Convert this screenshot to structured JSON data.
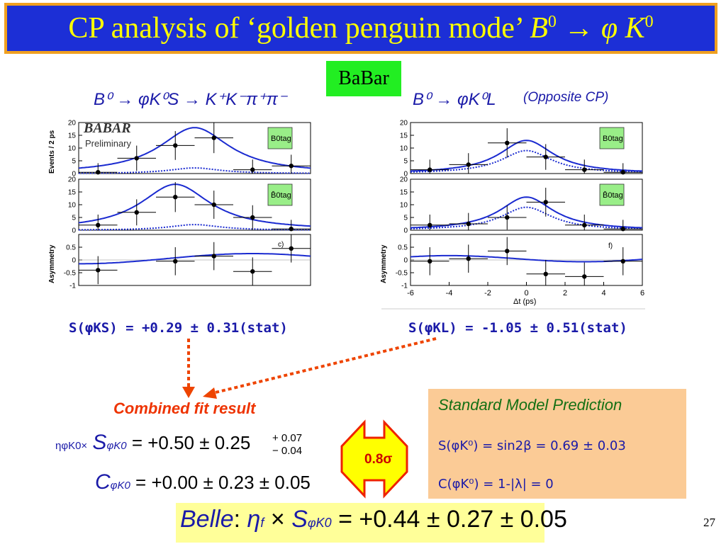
{
  "title": {
    "text": "CP analysis of ‘golden penguin mode’",
    "decay_b": "B",
    "decay_b_sup": "0",
    "decay_arrow": "→",
    "decay_phi": "φ",
    "decay_k": "K",
    "decay_k_sup": "0"
  },
  "babar_label": "BaBar",
  "left_decay": "B⁰ → φK⁰S → K⁺K⁻π⁺π⁻",
  "right_decay": "B⁰ → φK⁰L",
  "opposite_cp": "(Opposite CP)",
  "left_result": "S(φKS) = +0.29 ± 0.31(stat)",
  "right_result": "S(φKL) = -1.05 ± 0.51(stat)",
  "combined_label": "Combined fit result",
  "s_formula": {
    "prefix": "ηφK0×",
    "symbol": "S",
    "sub": "φK0",
    "value": "= +0.50 ± 0.25",
    "err_plus": "+ 0.07",
    "err_minus": "− 0.04"
  },
  "c_formula": {
    "symbol": "C",
    "sub": "φK0",
    "value": "= +0.00 ± 0.23 ± 0.05"
  },
  "significance": "0.8σ",
  "sm": {
    "title": "Standard Model Prediction",
    "line1": "S(φK⁰) = sin2β = 0.69 ± 0.03",
    "line2": "C(φK⁰) = 1-|λ| = 0"
  },
  "belle": {
    "label": "Belle",
    "colon": ":",
    "eta": "η",
    "eta_sub": "f",
    "times": "×",
    "s": "S",
    "s_sub": "φK0",
    "value": "= +0.44 ± 0.27 ± 0.05"
  },
  "page_number": "27",
  "plots": {
    "babar_logo": "BABAR",
    "preliminary": "Preliminary",
    "events_ylabel": "Events / 2 ps",
    "asym_ylabel": "Asymmetry",
    "xlabel": "Δt (ps)",
    "btag_label": "B0tag",
    "btagbar_label": "B̄0tag",
    "panel_c": "c)",
    "panel_f": "f)",
    "events_ticks": [
      "0",
      "5",
      "10",
      "15",
      "20"
    ],
    "asym_ticks": [
      "0.5",
      "0",
      "-0.5",
      "-1"
    ],
    "x_ticks": [
      "-6",
      "-4",
      "-2",
      "0",
      "2",
      "4",
      "6"
    ]
  },
  "chart_data": [
    {
      "type": "scatter",
      "title": "B0 → φK0S, B0 tag",
      "x": [
        -5,
        -3,
        -1,
        1,
        3,
        5
      ],
      "y": [
        0.5,
        6,
        11,
        14,
        1.5,
        3
      ],
      "xlim": [
        -6,
        6
      ],
      "ylim": [
        0,
        20
      ]
    },
    {
      "type": "scatter",
      "title": "B0 → φK0S, anti-B0 tag",
      "x": [
        -5,
        -3,
        -1,
        1,
        3,
        5
      ],
      "y": [
        2,
        7,
        13,
        10,
        5,
        0.5
      ],
      "xlim": [
        -6,
        6
      ],
      "ylim": [
        0,
        20
      ]
    },
    {
      "type": "scatter",
      "title": "B0 → φK0S asymmetry",
      "x": [
        -5,
        -1,
        1,
        3,
        5
      ],
      "y": [
        -0.4,
        -0.05,
        0.15,
        -0.45,
        0.45
      ],
      "xlim": [
        -6,
        6
      ],
      "ylim": [
        -1,
        1
      ]
    },
    {
      "type": "scatter",
      "title": "B0 → φK0L, B0 tag",
      "x": [
        -5,
        -3,
        -1,
        1,
        3,
        5
      ],
      "y": [
        1.5,
        3.5,
        12,
        6.5,
        1.5,
        0.5
      ],
      "xlim": [
        -6,
        6
      ],
      "ylim": [
        0,
        20
      ]
    },
    {
      "type": "scatter",
      "title": "B0 → φK0L, anti-B0 tag",
      "x": [
        -5,
        -3,
        -1,
        1,
        3,
        5
      ],
      "y": [
        2,
        2.5,
        5,
        11,
        2,
        0.5
      ],
      "xlim": [
        -6,
        6
      ],
      "ylim": [
        0,
        20
      ]
    },
    {
      "type": "scatter",
      "title": "B0 → φK0L asymmetry",
      "x": [
        -5,
        -3,
        -1,
        1,
        3,
        5
      ],
      "y": [
        -0.05,
        0.05,
        0.35,
        -0.55,
        -0.65,
        -0.05
      ],
      "xlim": [
        -6,
        6
      ],
      "ylim": [
        -1,
        1
      ]
    }
  ]
}
